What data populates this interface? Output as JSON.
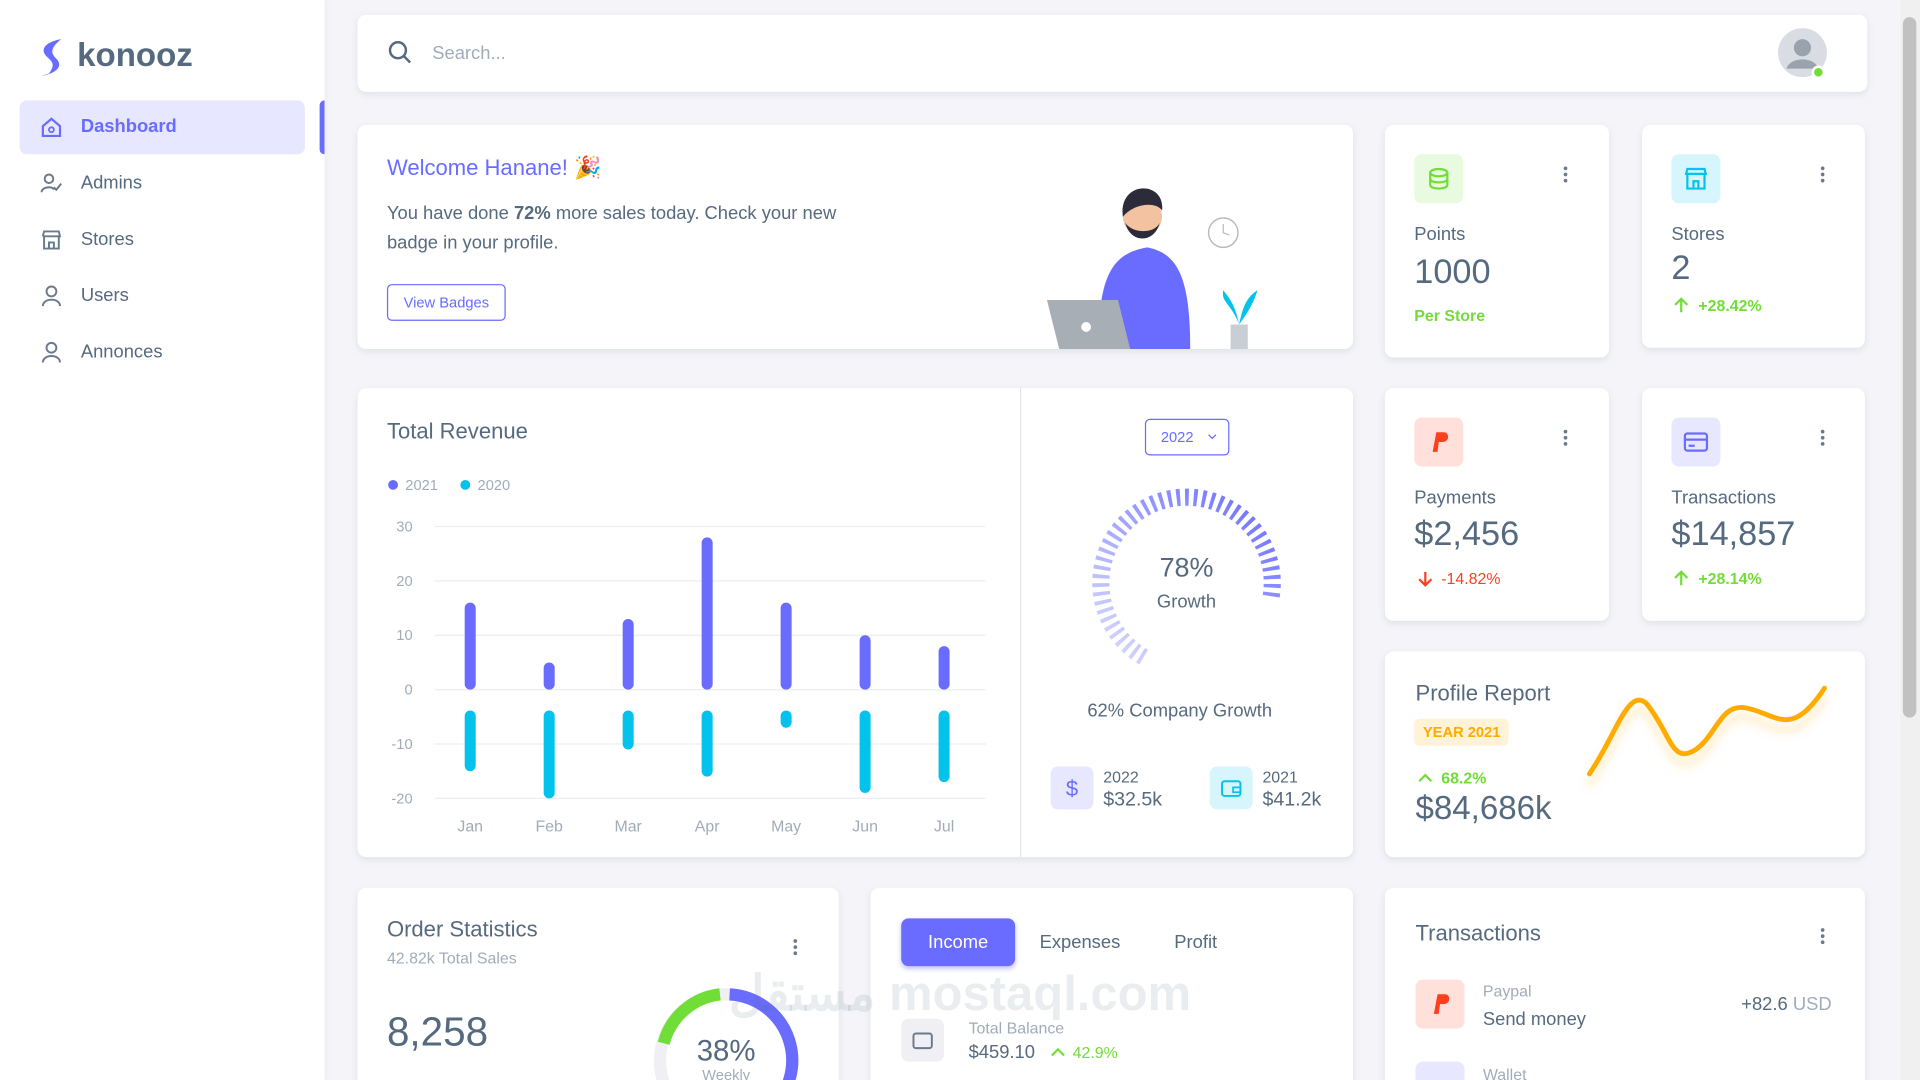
{
  "brand": "konooz",
  "nav": [
    "Dashboard",
    "Admins",
    "Stores",
    "Users",
    "Annonces"
  ],
  "search_placeholder": "Search...",
  "welcome": {
    "title": "Welcome Hanane! 🎉",
    "text_before": "You have done ",
    "highlight": "72%",
    "text_after": " more sales today. Check your new badge in your profile.",
    "button": "View Badges"
  },
  "stats": [
    {
      "label": "Points",
      "value": "1000",
      "note": "Per Store"
    },
    {
      "label": "Stores",
      "value": "2",
      "change": "+28.42%"
    },
    {
      "label": "Payments",
      "value": "$2,456",
      "change": "-14.82%"
    },
    {
      "label": "Transactions",
      "value": "$14,857",
      "change": "+28.14%"
    }
  ],
  "chart_data": {
    "type": "bar",
    "title": "Total Revenue",
    "categories": [
      "Jan",
      "Feb",
      "Mar",
      "Apr",
      "May",
      "Jun",
      "Jul"
    ],
    "series": [
      {
        "name": "2021",
        "color": "#696cff",
        "values": [
          16,
          5,
          13,
          28,
          16,
          10,
          8
        ]
      },
      {
        "name": "2020",
        "color": "#03c3ec",
        "values": [
          -15,
          -20,
          -11,
          -16,
          -7,
          -19,
          -17
        ]
      }
    ],
    "ylim": [
      -20,
      30
    ],
    "yticks": [
      -20,
      -10,
      0,
      10,
      20,
      30
    ],
    "grid": true
  },
  "growth": {
    "year_button": "2022",
    "value": 78,
    "value_label": "78%",
    "label": "Growth",
    "caption": "62% Company Growth",
    "items": [
      {
        "year": "2022",
        "amount": "$32.5k"
      },
      {
        "year": "2021",
        "amount": "$41.2k"
      }
    ]
  },
  "profile_report": {
    "title": "Profile Report",
    "badge": "YEAR 2021",
    "change": "68.2%",
    "value": "$84,686k"
  },
  "order_statistics": {
    "title": "Order Statistics",
    "subtitle": "42.82k Total Sales",
    "value": "8,258",
    "donut_value": 38,
    "donut_label": "38%",
    "donut_caption": "Weekly"
  },
  "income": {
    "tabs": [
      "Income",
      "Expenses",
      "Profit"
    ],
    "balance_label": "Total Balance",
    "balance": "$459.10",
    "change": "42.9%"
  },
  "transactions": {
    "title": "Transactions",
    "items": [
      {
        "source": "Paypal",
        "action": "Send money",
        "amount": "+82.6",
        "currency": "USD"
      },
      {
        "source": "Wallet"
      }
    ]
  },
  "watermark": "مستقل mostaql.com"
}
